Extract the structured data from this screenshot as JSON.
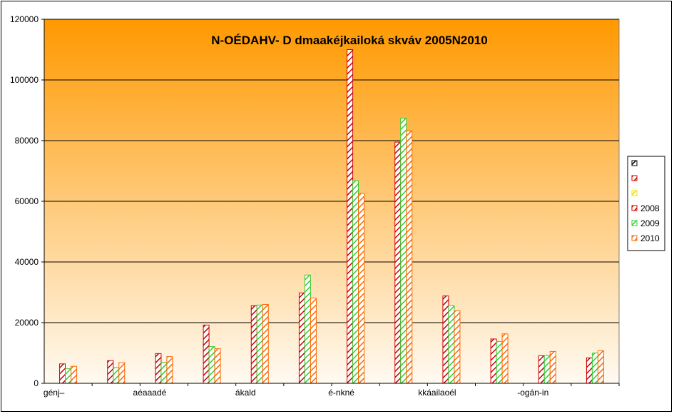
{
  "chart_data": {
    "type": "bar",
    "title": "N-OÉDAHV- D dmaakéjkailoká skváv 2005N2010",
    "xlabel": "",
    "ylabel": "",
    "ylim": [
      0,
      120000
    ],
    "yticks": [
      0,
      20000,
      40000,
      60000,
      80000,
      100000,
      120000
    ],
    "grid": true,
    "legend_position": "right",
    "categories": [
      "génj–",
      "",
      "aéaaadé",
      "",
      "ákald",
      "",
      "é-nkné",
      "",
      "kkáailaoél",
      "",
      "-ogán-in",
      ""
    ],
    "series": [
      {
        "name": "",
        "color": "#000000",
        "values": [
          null,
          null,
          null,
          null,
          null,
          null,
          null,
          null,
          null,
          null,
          null,
          null
        ]
      },
      {
        "name": "",
        "color": "#cc0000",
        "values": [
          null,
          null,
          null,
          null,
          null,
          null,
          null,
          null,
          null,
          null,
          null,
          null
        ]
      },
      {
        "name": "",
        "color": "#e6e600",
        "values": [
          null,
          null,
          null,
          null,
          null,
          null,
          null,
          null,
          null,
          null,
          null,
          null
        ]
      },
      {
        "name": "2008",
        "color": "#cc0000",
        "values": [
          6400,
          7500,
          9800,
          19200,
          25600,
          29800,
          110000,
          79500,
          28800,
          14600,
          9100,
          8400
        ]
      },
      {
        "name": "2009",
        "color": "#33cc33",
        "values": [
          4800,
          5200,
          6900,
          12100,
          25800,
          35700,
          66800,
          87400,
          25600,
          13800,
          9200,
          10000
        ]
      },
      {
        "name": "2010",
        "color": "#ff6600",
        "values": [
          5600,
          6800,
          8800,
          11400,
          26000,
          28100,
          62600,
          83200,
          23900,
          16300,
          10500,
          10700
        ]
      }
    ]
  }
}
